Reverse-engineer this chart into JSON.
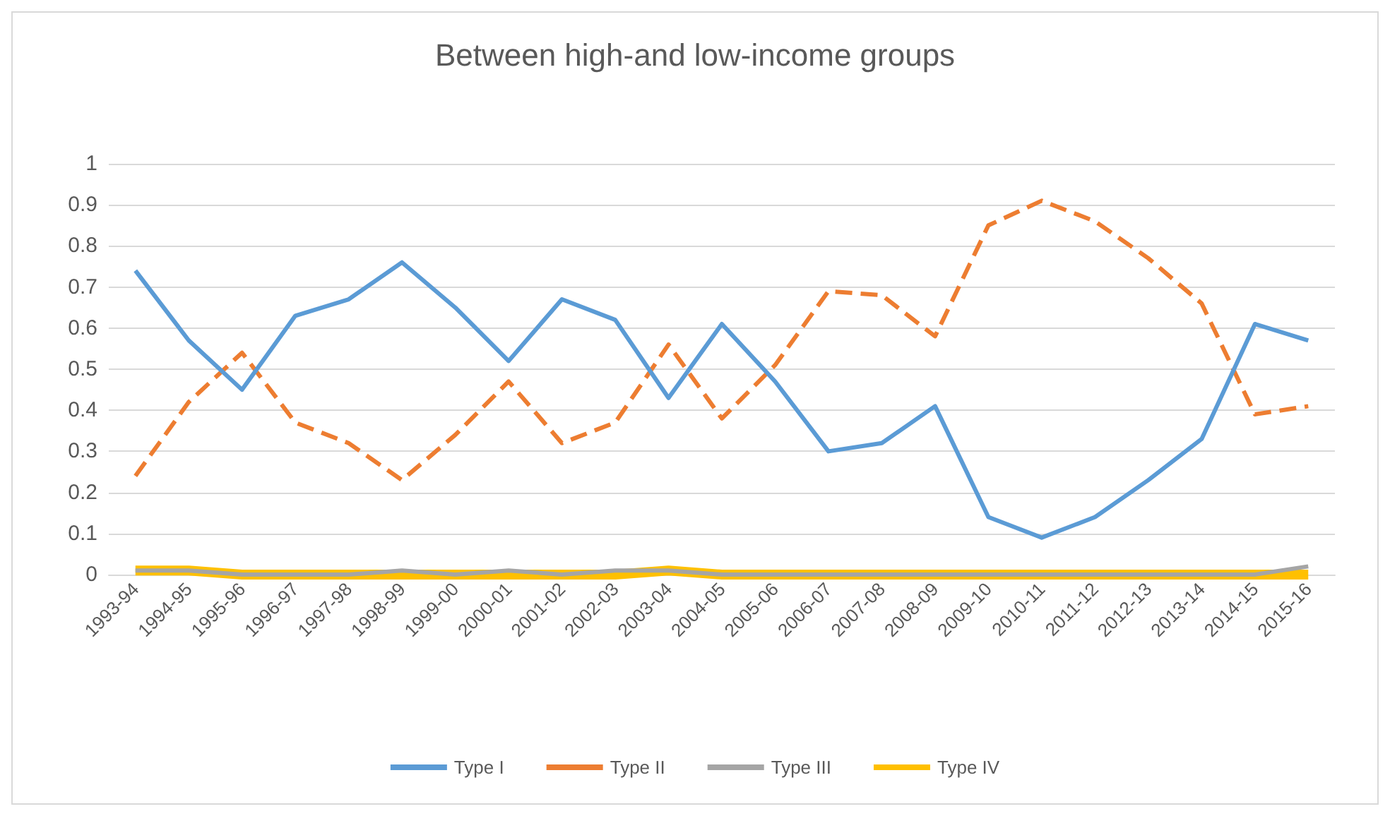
{
  "chart_data": {
    "type": "line",
    "title": "Between high-and low-income groups",
    "categories": [
      "1993-94",
      "1994-95",
      "1995-96",
      "1996-97",
      "1997-98",
      "1998-99",
      "1999-00",
      "2000-01",
      "2001-02",
      "2002-03",
      "2003-04",
      "2004-05",
      "2005-06",
      "2006-07",
      "2007-08",
      "2008-09",
      "2009-10",
      "2010-11",
      "2011-12",
      "2012-13",
      "2013-14",
      "2014-15",
      "2015-16"
    ],
    "series": [
      {
        "name": "Type I",
        "color": "#5b9bd5",
        "line_style": "solid",
        "values": [
          0.74,
          0.57,
          0.45,
          0.63,
          0.67,
          0.76,
          0.65,
          0.52,
          0.67,
          0.62,
          0.43,
          0.61,
          0.47,
          0.3,
          0.32,
          0.41,
          0.14,
          0.09,
          0.14,
          0.23,
          0.33,
          0.61,
          0.57
        ]
      },
      {
        "name": "Type II",
        "color": "#ed7d31",
        "line_style": "dashed",
        "values": [
          0.24,
          0.42,
          0.54,
          0.37,
          0.32,
          0.23,
          0.34,
          0.47,
          0.32,
          0.37,
          0.56,
          0.38,
          0.51,
          0.69,
          0.68,
          0.58,
          0.85,
          0.91,
          0.86,
          0.77,
          0.66,
          0.39,
          0.41
        ]
      },
      {
        "name": "Type III",
        "color": "#a5a5a5",
        "line_style": "solid",
        "values": [
          0.01,
          0.01,
          0,
          0,
          0,
          0.01,
          0,
          0.01,
          0,
          0.01,
          0.01,
          0,
          0,
          0,
          0,
          0,
          0,
          0,
          0,
          0,
          0,
          0,
          0.02
        ]
      },
      {
        "name": "Type IV",
        "color": "#ffc000",
        "line_style": "solid",
        "values": [
          0.01,
          0.01,
          0,
          0,
          0,
          0,
          0,
          0,
          0,
          0,
          0.01,
          0,
          0,
          0,
          0,
          0,
          0,
          0,
          0,
          0,
          0,
          0,
          0
        ]
      }
    ],
    "ylim": [
      0,
      1
    ],
    "yticks": [
      0,
      0.1,
      0.2,
      0.3,
      0.4,
      0.5,
      0.6,
      0.7,
      0.8,
      0.9,
      1
    ],
    "grid": "y",
    "legend": "bottom",
    "marker": "none"
  }
}
